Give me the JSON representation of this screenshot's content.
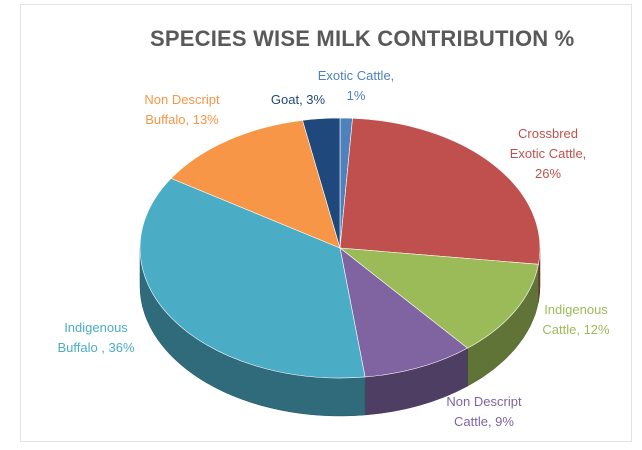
{
  "chart_data": {
    "type": "pie",
    "title": "SPECIES WISE MILK CONTRIBUTION %",
    "slices": [
      {
        "label": "Exotic Cattle, 1%",
        "value": 1,
        "color": "#4F81BD"
      },
      {
        "label": "Crossbred Exotic Cattle, 26%",
        "value": 26,
        "color": "#C0504D"
      },
      {
        "label": "Indigenous Cattle, 12%",
        "value": 12,
        "color": "#9BBB59"
      },
      {
        "label": "Non Descript Cattle, 9%",
        "value": 9,
        "color": "#8064A2"
      },
      {
        "label": "Indigenous Buffalo , 36%",
        "value": 36,
        "color": "#4BACC6"
      },
      {
        "label": "Non Descript Buffalo, 13%",
        "value": 13,
        "color": "#F79646"
      },
      {
        "label": "Goat, 3%",
        "value": 3,
        "color": "#1F497D"
      }
    ],
    "label_lines": [
      [
        "Exotic Cattle,",
        "1%"
      ],
      [
        "Crossbred",
        "Exotic Cattle,",
        "26%"
      ],
      [
        "Indigenous",
        "Cattle, 12%"
      ],
      [
        "Non Descript",
        "Cattle, 9%"
      ],
      [
        "Indigenous",
        "Buffalo , 36%"
      ],
      [
        "Non Descript",
        "Buffalo, 13%"
      ],
      [
        "Goat, 3%"
      ]
    ],
    "label_colors": [
      "#4F81BD",
      "#C0504D",
      "#9BBB59",
      "#8064A2",
      "#4BACC6",
      "#F79646",
      "#1F497D"
    ],
    "start_angle_deg": 0,
    "direction": "clockwise",
    "style": "3d",
    "legend": "none"
  }
}
